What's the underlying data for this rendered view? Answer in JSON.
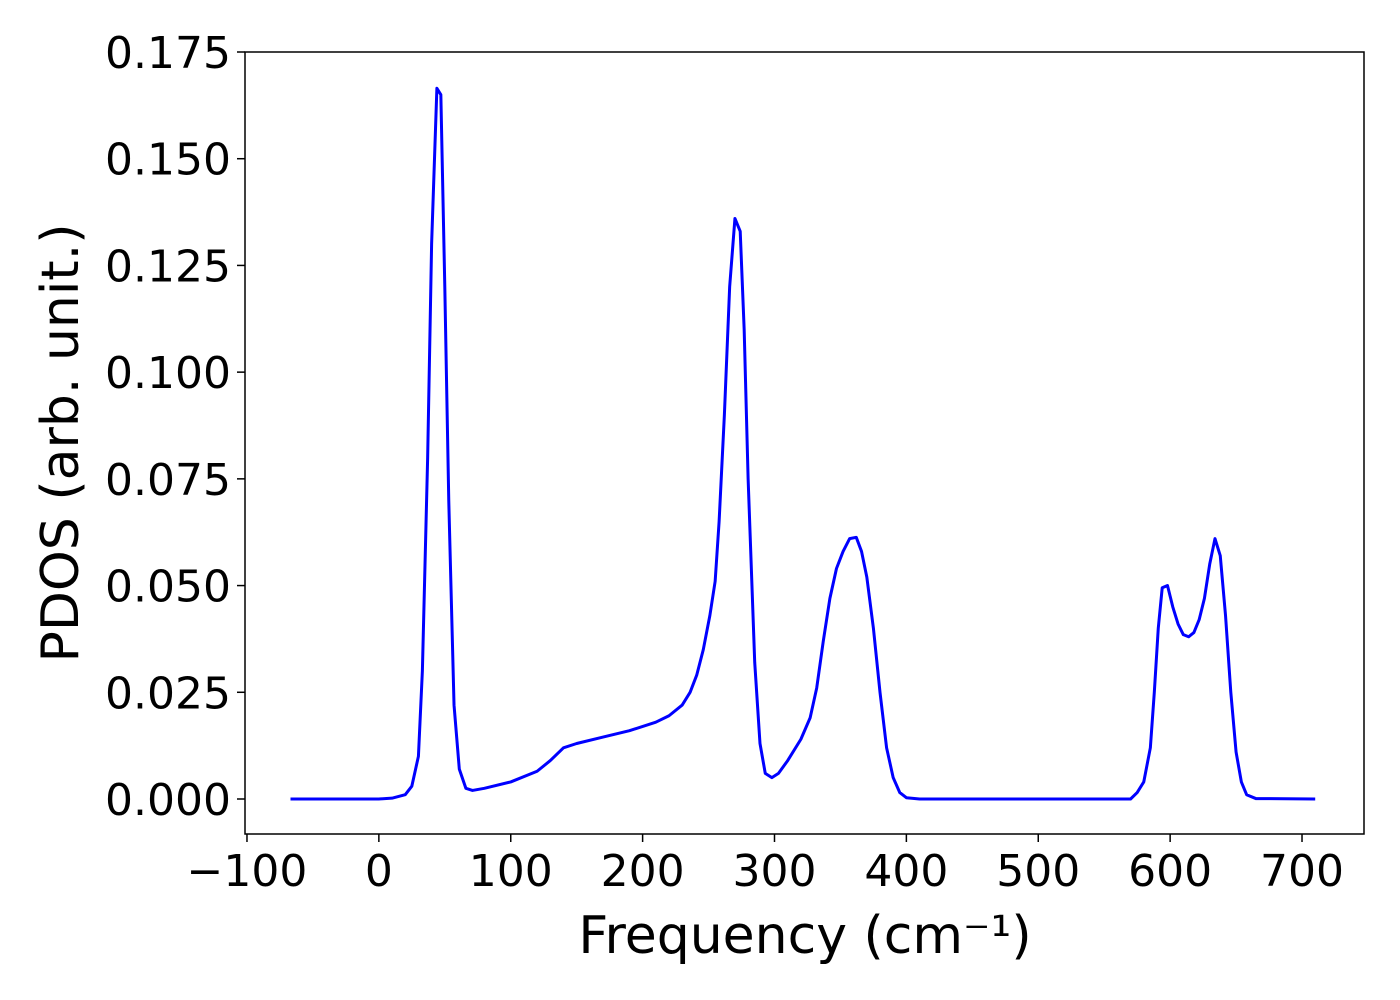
{
  "chart_data": {
    "type": "line",
    "x_label": "Frequency (cm⁻¹)",
    "y_label": "PDOS (arb. unit.)",
    "xlim": [
      -101.5,
      747
    ],
    "ylim": [
      -0.0082,
      0.175
    ],
    "xticks": [
      {
        "value": -100,
        "label": "−100"
      },
      0,
      100,
      200,
      300,
      400,
      500,
      600,
      700
    ],
    "yticks": [
      {
        "value": 0,
        "label": "0.000"
      },
      {
        "value": 0.025,
        "label": "0.025"
      },
      {
        "value": 0.05,
        "label": "0.050"
      },
      {
        "value": 0.075,
        "label": "0.075"
      },
      {
        "value": 0.1,
        "label": "0.100"
      },
      {
        "value": 0.125,
        "label": "0.125"
      },
      {
        "value": 0.15,
        "label": "0.150"
      },
      {
        "value": 0.175,
        "label": "0.175"
      }
    ],
    "grid": false,
    "series": [
      {
        "color": "#0000ff",
        "x": [
          -67,
          0,
          10,
          20,
          25,
          30,
          33,
          37,
          40,
          44,
          47,
          50,
          53,
          57,
          61,
          66,
          71,
          80,
          100,
          120,
          130,
          140,
          150,
          170,
          190,
          210,
          220,
          230,
          236,
          241,
          246,
          251,
          255,
          258,
          262,
          266,
          270,
          274,
          277,
          280,
          285,
          289,
          293,
          298,
          303,
          310,
          320,
          327,
          332,
          337,
          342,
          347,
          352,
          357,
          362,
          366,
          370,
          375,
          380,
          385,
          390,
          395,
          400,
          410,
          570,
          575,
          580,
          585,
          588,
          591,
          594,
          598,
          602,
          606,
          610,
          614,
          618,
          622,
          626,
          630,
          634,
          638,
          642,
          646,
          650,
          654,
          658,
          665,
          710
        ],
        "values": [
          0,
          0,
          0.0002,
          0.001,
          0.003,
          0.01,
          0.03,
          0.08,
          0.13,
          0.1665,
          0.165,
          0.12,
          0.07,
          0.022,
          0.007,
          0.0025,
          0.002,
          0.0025,
          0.004,
          0.0065,
          0.009,
          0.012,
          0.013,
          0.0145,
          0.016,
          0.018,
          0.0195,
          0.022,
          0.025,
          0.029,
          0.035,
          0.043,
          0.051,
          0.065,
          0.09,
          0.12,
          0.136,
          0.133,
          0.11,
          0.075,
          0.032,
          0.013,
          0.006,
          0.005,
          0.006,
          0.009,
          0.014,
          0.019,
          0.026,
          0.037,
          0.047,
          0.054,
          0.058,
          0.061,
          0.0613,
          0.058,
          0.052,
          0.04,
          0.025,
          0.012,
          0.005,
          0.0015,
          0.0003,
          0,
          0,
          0.0015,
          0.004,
          0.012,
          0.025,
          0.04,
          0.0495,
          0.05,
          0.045,
          0.041,
          0.0385,
          0.038,
          0.039,
          0.042,
          0.047,
          0.055,
          0.061,
          0.057,
          0.043,
          0.025,
          0.011,
          0.004,
          0.001,
          0.0001,
          0
        ]
      }
    ]
  }
}
